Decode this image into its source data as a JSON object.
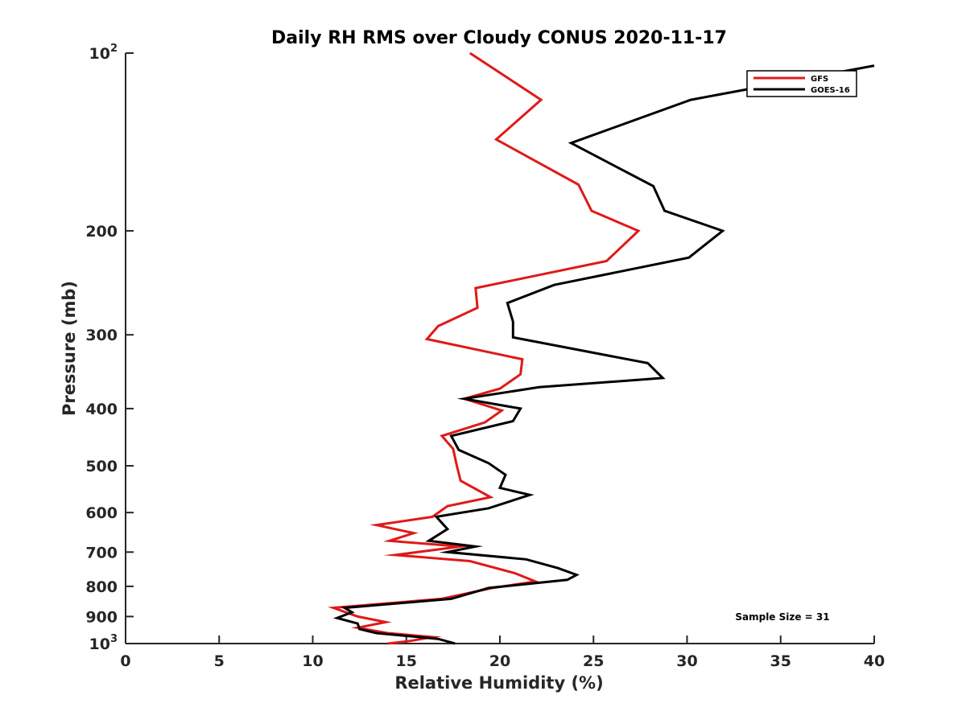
{
  "chart_data": {
    "type": "line",
    "title": "Daily RH RMS over Cloudy CONUS 2020-11-17",
    "xlabel": "Relative Humidity (%)",
    "ylabel": "Pressure (mb)",
    "xlim": [
      0,
      40
    ],
    "ylim": [
      100,
      1000
    ],
    "yscale": "log",
    "y_reversed": true,
    "x_ticks": [
      "0",
      "5",
      "10",
      "15",
      "20",
      "25",
      "30",
      "35",
      "40"
    ],
    "x_tick_values": [
      0,
      5,
      10,
      15,
      20,
      25,
      30,
      35,
      40
    ],
    "y_ticks": [
      {
        "value": 100,
        "label": "10",
        "sup": "2"
      },
      {
        "value": 200,
        "label": "200"
      },
      {
        "value": 300,
        "label": "300"
      },
      {
        "value": 400,
        "label": "400"
      },
      {
        "value": 500,
        "label": "500"
      },
      {
        "value": 600,
        "label": "600"
      },
      {
        "value": 700,
        "label": "700"
      },
      {
        "value": 800,
        "label": "800"
      },
      {
        "value": 900,
        "label": "900"
      },
      {
        "value": 1000,
        "label": "10",
        "sup": "3"
      }
    ],
    "legend_position": "top-right",
    "annotation": "Sample Size = 31",
    "series": [
      {
        "name": "GFS",
        "color": "#e0191a",
        "points": [
          [
            18.4,
            100
          ],
          [
            22.2,
            120
          ],
          [
            19.8,
            140
          ],
          [
            24.2,
            167
          ],
          [
            24.9,
            185
          ],
          [
            27.4,
            200
          ],
          [
            25.7,
            225
          ],
          [
            18.7,
            250
          ],
          [
            18.8,
            270
          ],
          [
            16.7,
            290
          ],
          [
            16.1,
            305
          ],
          [
            21.2,
            330
          ],
          [
            21.1,
            350
          ],
          [
            20.0,
            370
          ],
          [
            18.1,
            385
          ],
          [
            20.1,
            403
          ],
          [
            19.2,
            422
          ],
          [
            16.9,
            445
          ],
          [
            17.5,
            468
          ],
          [
            17.7,
            500
          ],
          [
            17.9,
            530
          ],
          [
            19.5,
            565
          ],
          [
            17.2,
            585
          ],
          [
            16.4,
            610
          ],
          [
            13.4,
            630
          ],
          [
            15.4,
            650
          ],
          [
            14.1,
            670
          ],
          [
            17.9,
            685
          ],
          [
            14.4,
            708
          ],
          [
            18.4,
            725
          ],
          [
            20.8,
            760
          ],
          [
            21.9,
            785
          ],
          [
            19.6,
            805
          ],
          [
            16.9,
            840
          ],
          [
            11.1,
            870
          ],
          [
            12.4,
            900
          ],
          [
            13.9,
            920
          ],
          [
            12.4,
            940
          ],
          [
            14.0,
            960
          ],
          [
            16.4,
            975
          ],
          [
            15.2,
            990
          ],
          [
            14.0,
            1000
          ]
        ]
      },
      {
        "name": "GOES-16",
        "color": "#000000",
        "points": [
          [
            40.0,
            105
          ],
          [
            30.2,
            120
          ],
          [
            23.8,
            142
          ],
          [
            28.2,
            168
          ],
          [
            28.8,
            185
          ],
          [
            31.9,
            200
          ],
          [
            30.1,
            222
          ],
          [
            22.9,
            247
          ],
          [
            20.4,
            265
          ],
          [
            20.7,
            285
          ],
          [
            20.7,
            303
          ],
          [
            27.9,
            335
          ],
          [
            28.7,
            355
          ],
          [
            22.1,
            368
          ],
          [
            18.1,
            385
          ],
          [
            21.1,
            400
          ],
          [
            20.7,
            420
          ],
          [
            17.4,
            445
          ],
          [
            17.8,
            470
          ],
          [
            19.4,
            495
          ],
          [
            20.3,
            518
          ],
          [
            20.0,
            545
          ],
          [
            21.6,
            560
          ],
          [
            19.4,
            590
          ],
          [
            16.6,
            610
          ],
          [
            17.2,
            640
          ],
          [
            16.2,
            670
          ],
          [
            18.7,
            685
          ],
          [
            17.2,
            700
          ],
          [
            21.4,
            720
          ],
          [
            23.1,
            745
          ],
          [
            24.1,
            765
          ],
          [
            23.6,
            780
          ],
          [
            19.4,
            805
          ],
          [
            17.4,
            840
          ],
          [
            11.7,
            870
          ],
          [
            12.1,
            885
          ],
          [
            11.3,
            905
          ],
          [
            12.4,
            925
          ],
          [
            12.5,
            945
          ],
          [
            13.4,
            960
          ],
          [
            16.7,
            982
          ],
          [
            17.6,
            1000
          ]
        ]
      }
    ]
  }
}
